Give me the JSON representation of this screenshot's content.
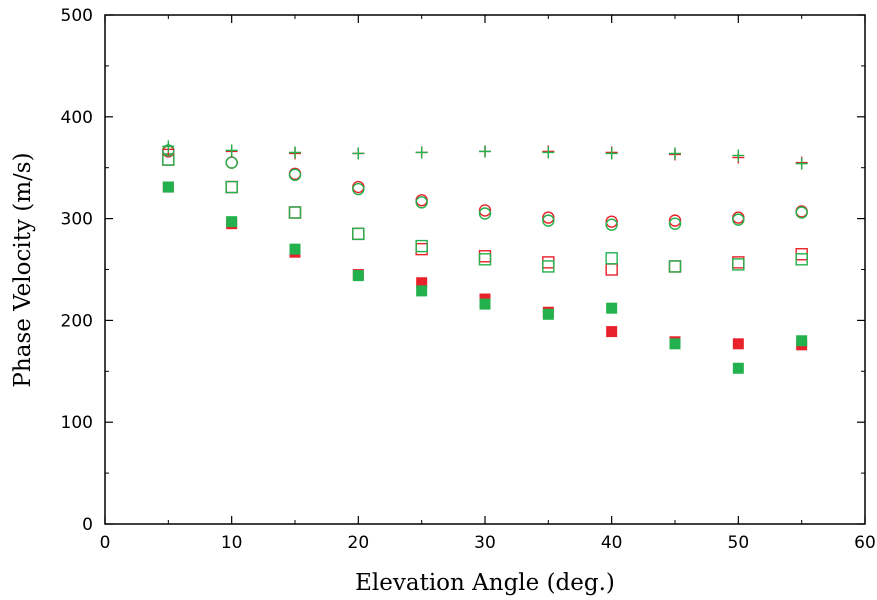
{
  "chart_data": {
    "type": "scatter",
    "xlabel": "Elevation Angle (deg.)",
    "ylabel": "Phase Velocity (m/s)",
    "xlim": [
      0,
      60
    ],
    "ylim": [
      0,
      500
    ],
    "xticks": [
      "0",
      "10",
      "20",
      "30",
      "40",
      "50",
      "60"
    ],
    "yticks": [
      "0",
      "100",
      "200",
      "300",
      "400",
      "500"
    ],
    "grid": false,
    "colors": {
      "red": "#e8212b",
      "green": "#22b14c"
    },
    "series": [
      {
        "marker": "plus",
        "color": "red",
        "x": [
          5,
          10,
          15,
          20,
          25,
          30,
          35,
          40,
          45,
          50,
          55
        ],
        "y": [
          368,
          366,
          364,
          364,
          365,
          366,
          366,
          365,
          363,
          360,
          355
        ]
      },
      {
        "marker": "plus",
        "color": "green",
        "x": [
          5,
          10,
          15,
          20,
          25,
          30,
          35,
          40,
          45,
          50,
          55
        ],
        "y": [
          371,
          367,
          365,
          364,
          365,
          366,
          365,
          364,
          364,
          362,
          354
        ]
      },
      {
        "marker": "circle",
        "color": "red",
        "x": [
          5,
          10,
          15,
          20,
          25,
          30,
          35,
          40,
          45,
          50,
          55
        ],
        "y": [
          366,
          355,
          344,
          331,
          318,
          308,
          301,
          297,
          298,
          301,
          307
        ]
      },
      {
        "marker": "circle",
        "color": "green",
        "x": [
          5,
          10,
          15,
          20,
          25,
          30,
          35,
          40,
          45,
          50,
          55
        ],
        "y": [
          367,
          355,
          343,
          329,
          316,
          305,
          298,
          294,
          295,
          299,
          306
        ]
      },
      {
        "marker": "square-open",
        "color": "red",
        "x": [
          5,
          10,
          15,
          20,
          25,
          30,
          35,
          40,
          45,
          50,
          55
        ],
        "y": [
          358,
          331,
          306,
          285,
          270,
          263,
          257,
          250,
          253,
          257,
          265
        ]
      },
      {
        "marker": "square-open",
        "color": "green",
        "x": [
          5,
          10,
          15,
          20,
          25,
          30,
          35,
          40,
          45,
          50,
          55
        ],
        "y": [
          358,
          331,
          306,
          285,
          273,
          260,
          253,
          261,
          253,
          255,
          260
        ]
      },
      {
        "marker": "square-filled",
        "color": "red",
        "x": [
          5,
          10,
          15,
          20,
          25,
          30,
          35,
          40,
          45,
          50,
          55
        ],
        "y": [
          331,
          295,
          267,
          245,
          237,
          221,
          208,
          189,
          179,
          177,
          176
        ]
      },
      {
        "marker": "square-filled",
        "color": "green",
        "x": [
          5,
          10,
          15,
          20,
          25,
          30,
          35,
          40,
          45,
          50,
          55
        ],
        "y": [
          331,
          297,
          270,
          244,
          229,
          216,
          206,
          212,
          177,
          153,
          180
        ]
      }
    ]
  }
}
